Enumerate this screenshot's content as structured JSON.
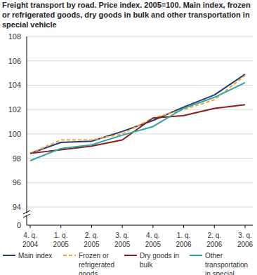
{
  "chart_data": {
    "type": "line",
    "title": "Freight transport by road. Price index. 2005=100. Main index, frozen or refrigerated goods, dry goods in bulk and other transportation in special vehicle",
    "categories": [
      "4. q. 2004",
      "1. q. 2005",
      "2. q. 2005",
      "3. q. 2005",
      "4. q. 2005",
      "1. q. 2006",
      "2. q. 2006",
      "3. q. 2006"
    ],
    "series": [
      {
        "name": "Main index",
        "color": "#1f3b7a",
        "line_style": "solid",
        "values": [
          98.4,
          99.3,
          99.4,
          100.2,
          101.1,
          102.2,
          103.2,
          104.9
        ]
      },
      {
        "name": "Frozen or refrigerated goods",
        "color": "#f4a531",
        "line_style": "dashed",
        "values": [
          98.4,
          99.5,
          99.5,
          100.0,
          101.3,
          102.0,
          102.8,
          104.8
        ]
      },
      {
        "name": "Dry goods in bulk",
        "color": "#8c1c1c",
        "line_style": "solid",
        "values": [
          98.4,
          98.7,
          99.0,
          99.5,
          101.3,
          101.5,
          102.1,
          102.4
        ]
      },
      {
        "name": "Other transportation in special vehicle",
        "color": "#2ca6a4",
        "line_style": "solid",
        "values": [
          97.8,
          98.8,
          99.1,
          99.9,
          100.6,
          102.1,
          103.0,
          104.2
        ]
      }
    ],
    "ylim": [
      94,
      108
    ],
    "yticks": [
      94,
      96,
      98,
      100,
      102,
      104,
      106,
      108
    ],
    "annotations": [
      "0"
    ],
    "grid": true,
    "legend": "bottom"
  }
}
